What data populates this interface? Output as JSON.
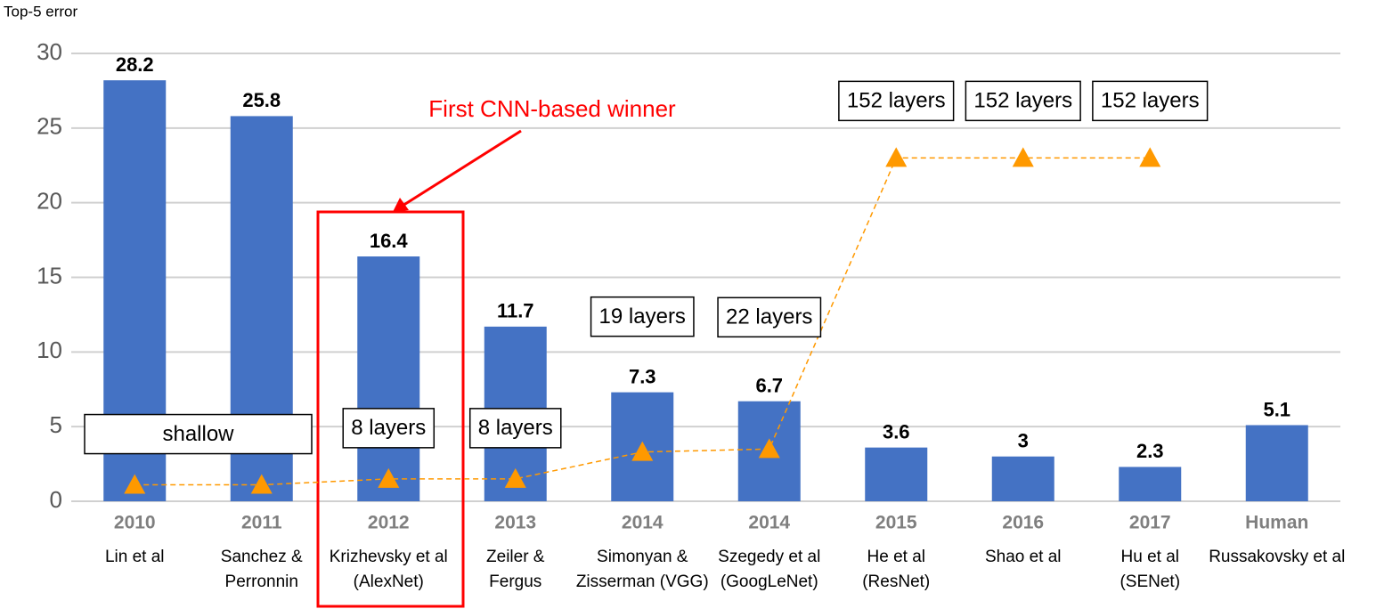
{
  "chart_data": {
    "type": "bar",
    "y_axis_label": "Top-5 error",
    "annotation": "First CNN-based winner",
    "categories": [
      "2010",
      "2011",
      "2012",
      "2013",
      "2014",
      "2014",
      "2015",
      "2016",
      "2017",
      "Human"
    ],
    "authors": [
      [
        "Lin et al"
      ],
      [
        "Sanchez &",
        "Perronnin"
      ],
      [
        "Krizhevsky et al",
        "(AlexNet)"
      ],
      [
        "Zeiler &",
        "Fergus"
      ],
      [
        "Simonyan &",
        "Zisserman (VGG)"
      ],
      [
        "Szegedy et al",
        "(GoogLeNet)"
      ],
      [
        "He et al",
        "(ResNet)"
      ],
      [
        "Shao et al"
      ],
      [
        "Hu et al",
        "(SENet)"
      ],
      [
        "Russakovsky et al"
      ]
    ],
    "values": [
      28.2,
      25.8,
      16.4,
      11.7,
      7.3,
      6.7,
      3.6,
      3,
      2.3,
      5.1
    ],
    "color": "#4472c4",
    "line": {
      "color": "#ff9900",
      "values": [
        1.1,
        1.1,
        1.5,
        1.5,
        3.3,
        3.5,
        23,
        23,
        23,
        null
      ]
    },
    "layer_labels": [
      "shallow",
      null,
      "8 layers",
      "8 layers",
      "19 layers",
      "22 layers",
      "152 layers",
      "152 layers",
      "152 layers",
      null
    ],
    "ylim": [
      0,
      30
    ],
    "yticks": [
      0,
      5,
      10,
      15,
      20,
      25,
      30
    ],
    "grid": true
  }
}
